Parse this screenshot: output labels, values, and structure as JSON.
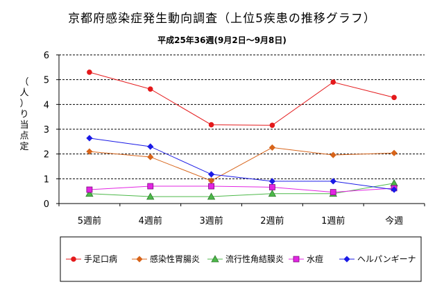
{
  "chart_data": {
    "type": "line",
    "title": "京都府感染症発生動向調査（上位5疾患の推移グラフ）",
    "subtitle": "平成25年36週(9月2日〜9月8日)",
    "ylabel": "（人）り当点定",
    "xlabel": "",
    "ylim": [
      0,
      6
    ],
    "yticks": [
      "0",
      "1",
      "2",
      "3",
      "4",
      "5",
      "6"
    ],
    "categories": [
      "5週前",
      "4週前",
      "3週前",
      "2週前",
      "1週前",
      "今週"
    ],
    "grid": true,
    "legend": "bottom",
    "series": [
      {
        "name": "手足口病",
        "color": "#e4191b",
        "marker": "circle",
        "values": [
          5.3,
          4.62,
          3.18,
          3.16,
          4.9,
          4.28
        ]
      },
      {
        "name": "感染性胃腸炎",
        "color": "#d7641a",
        "marker": "diamond",
        "values": [
          2.1,
          1.88,
          0.92,
          2.26,
          1.96,
          2.04
        ]
      },
      {
        "name": "流行性角結膜炎",
        "color": "#4cb849",
        "marker": "triangle",
        "values": [
          0.4,
          0.28,
          0.28,
          0.4,
          0.4,
          0.82
        ]
      },
      {
        "name": "水痘",
        "color": "#e225e2",
        "marker": "square",
        "values": [
          0.56,
          0.7,
          0.7,
          0.66,
          0.46,
          0.62
        ]
      },
      {
        "name": "ヘルパンギーナ",
        "color": "#1a1ae6",
        "marker": "diamond",
        "values": [
          2.64,
          2.3,
          1.18,
          0.9,
          0.9,
          0.56
        ]
      }
    ]
  }
}
